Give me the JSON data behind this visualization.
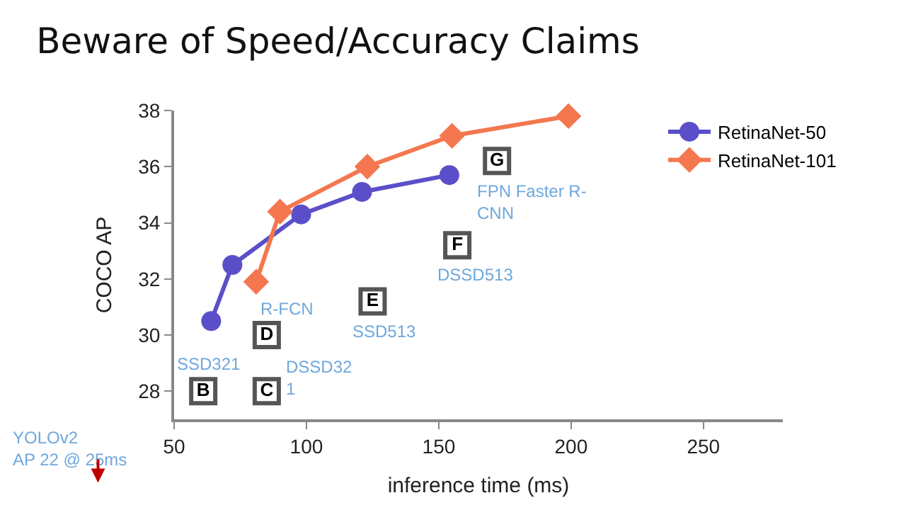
{
  "chart_data": {
    "type": "line",
    "title": "Beware of Speed/Accuracy Claims",
    "xlabel": "inference time (ms)",
    "ylabel": "COCO AP",
    "xlim": [
      50,
      280
    ],
    "xticks": [
      50,
      100,
      150,
      200,
      250
    ],
    "ylim": [
      27,
      38
    ],
    "yticks": [
      28,
      30,
      32,
      34,
      36,
      38
    ],
    "legend": "top right",
    "series": [
      {
        "name": "RetinaNet-50",
        "color": "#5b4fc9",
        "marker": "circle",
        "x": [
          64,
          72,
          98,
          121,
          154
        ],
        "values": [
          30.5,
          32.5,
          34.3,
          35.1,
          35.7
        ]
      },
      {
        "name": "RetinaNet-101",
        "color": "#f4774f",
        "marker": "diamond",
        "x": [
          81,
          90,
          123,
          155,
          199
        ],
        "values": [
          31.9,
          34.4,
          36.0,
          37.1,
          37.8
        ]
      },
      {
        "type": "scatter",
        "color": "#555555",
        "marker": "square",
        "x": [
          61,
          85,
          85,
          125,
          157,
          172
        ],
        "values": [
          28,
          28,
          30,
          31.2,
          33.2,
          36.2
        ],
        "value_labels": [
          "B",
          "C",
          "D",
          "E",
          "F",
          "G"
        ]
      }
    ],
    "annotations": [
      {
        "text": "SSD321",
        "x": 61,
        "y": 28
      },
      {
        "text": "DSSD32\n1",
        "x": 85,
        "y": 28
      },
      {
        "text": "R-FCN",
        "x": 85,
        "y": 30
      },
      {
        "text": "SSD513",
        "x": 125,
        "y": 31.2
      },
      {
        "text": "DSSD513",
        "x": 157,
        "y": 33.2
      },
      {
        "text": "FPN Faster R-\nCNN",
        "x": 172,
        "y": 36.2
      },
      "YOLOv2\nAP 22 @ 25ms"
    ]
  }
}
